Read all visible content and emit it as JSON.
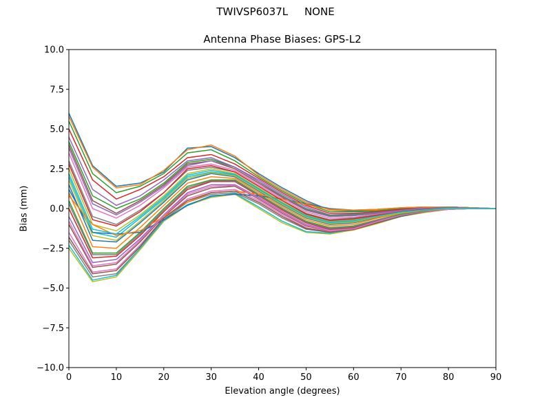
{
  "suptitle": "TWIVSP6037L     NONE",
  "chart_data": {
    "type": "line",
    "title": "Antenna Phase Biases: GPS-L2",
    "xlabel": "Elevation angle (degrees)",
    "ylabel": "Bias (mm)",
    "xlim": [
      0,
      90
    ],
    "ylim": [
      -10,
      10
    ],
    "xticks": [
      0,
      10,
      20,
      30,
      40,
      50,
      60,
      70,
      80,
      90
    ],
    "xtick_labels": [
      "0",
      "10",
      "20",
      "30",
      "40",
      "50",
      "60",
      "70",
      "80",
      "90"
    ],
    "yticks": [
      -10,
      -7.5,
      -5,
      -2.5,
      0,
      2.5,
      5,
      7.5,
      10
    ],
    "ytick_labels": [
      "−10.0",
      "−7.5",
      "−5.0",
      "−2.5",
      "0.0",
      "2.5",
      "5.0",
      "7.5",
      "10.0"
    ],
    "grid": false,
    "legend": "none",
    "colors": [
      "#1f77b4",
      "#ff7f0e",
      "#2ca02c",
      "#d62728",
      "#9467bd",
      "#8c564b",
      "#e377c2",
      "#7f7f7f",
      "#bcbd22",
      "#17becf"
    ],
    "x": [
      0,
      5,
      10,
      15,
      20,
      25,
      30,
      35,
      40,
      45,
      50,
      55,
      60,
      65,
      70,
      75,
      80,
      85,
      90
    ],
    "series": [
      {
        "values": [
          6.0,
          2.7,
          1.4,
          1.6,
          2.3,
          3.8,
          3.9,
          3.2,
          2.2,
          1.3,
          0.5,
          -0.1,
          -0.15,
          -0.1,
          0.0,
          0.1,
          0.1,
          0.05,
          0.0
        ]
      },
      {
        "values": [
          5.8,
          2.6,
          1.3,
          1.5,
          2.4,
          3.7,
          4.0,
          3.3,
          2.1,
          1.2,
          0.4,
          -0.1,
          -0.1,
          -0.1,
          0.05,
          0.1,
          0.1,
          0.05,
          0.0
        ]
      },
      {
        "values": [
          5.5,
          2.2,
          1.0,
          1.4,
          2.2,
          3.5,
          3.7,
          3.0,
          2.0,
          1.1,
          0.3,
          -0.2,
          -0.2,
          -0.15,
          0.0,
          0.1,
          0.1,
          0.05,
          0.0
        ]
      },
      {
        "values": [
          5.0,
          1.8,
          0.6,
          1.2,
          2.0,
          3.2,
          3.4,
          2.8,
          1.9,
          1.0,
          0.2,
          -0.3,
          -0.3,
          -0.2,
          -0.05,
          0.05,
          0.1,
          0.05,
          0.0
        ]
      },
      {
        "values": [
          4.5,
          1.2,
          0.2,
          0.8,
          1.8,
          3.0,
          3.2,
          2.6,
          1.8,
          0.9,
          0.1,
          -0.4,
          -0.35,
          -0.25,
          -0.1,
          0.05,
          0.1,
          0.05,
          0.0
        ]
      },
      {
        "values": [
          4.0,
          0.5,
          -0.3,
          0.5,
          1.5,
          2.8,
          3.0,
          2.5,
          1.6,
          0.7,
          -0.1,
          -0.5,
          -0.45,
          -0.3,
          -0.15,
          0.0,
          0.05,
          0.03,
          0.0
        ]
      },
      {
        "values": [
          3.5,
          0.0,
          -0.6,
          0.2,
          1.3,
          2.6,
          2.8,
          2.4,
          1.5,
          0.6,
          -0.2,
          -0.6,
          -0.55,
          -0.35,
          -0.15,
          0.0,
          0.05,
          0.03,
          0.0
        ]
      },
      {
        "values": [
          3.0,
          -0.5,
          -1.0,
          -0.1,
          1.0,
          2.4,
          2.6,
          2.3,
          1.4,
          0.5,
          -0.3,
          -0.7,
          -0.6,
          -0.4,
          -0.2,
          -0.05,
          0.05,
          0.03,
          0.0
        ]
      },
      {
        "values": [
          2.5,
          -1.0,
          -1.4,
          -0.4,
          0.8,
          2.2,
          2.5,
          2.2,
          1.3,
          0.4,
          -0.4,
          -0.8,
          -0.7,
          -0.45,
          -0.2,
          -0.05,
          0.05,
          0.03,
          0.0
        ]
      },
      {
        "values": [
          2.0,
          -1.5,
          -1.8,
          -0.6,
          0.6,
          2.0,
          2.3,
          2.1,
          1.2,
          0.3,
          -0.5,
          -0.9,
          -0.8,
          -0.5,
          -0.25,
          -0.1,
          0.0,
          0.02,
          0.0
        ]
      },
      {
        "values": [
          1.5,
          -2.0,
          -2.1,
          -0.9,
          0.4,
          1.8,
          2.2,
          2.0,
          1.1,
          0.2,
          -0.6,
          -1.0,
          -0.9,
          -0.55,
          -0.3,
          -0.1,
          0.0,
          0.02,
          0.0
        ]
      },
      {
        "values": [
          1.0,
          -2.4,
          -2.5,
          -1.2,
          0.2,
          1.6,
          2.0,
          1.9,
          1.0,
          0.1,
          -0.7,
          -1.1,
          -1.0,
          -0.6,
          -0.3,
          -0.1,
          0.0,
          0.02,
          0.0
        ]
      },
      {
        "values": [
          0.5,
          -2.8,
          -2.8,
          -1.5,
          0.0,
          1.4,
          1.8,
          1.8,
          0.9,
          0.0,
          -0.8,
          -1.2,
          -1.1,
          -0.7,
          -0.35,
          -0.15,
          0.0,
          0.02,
          0.0
        ]
      },
      {
        "values": [
          0.0,
          -3.1,
          -3.0,
          -1.7,
          -0.2,
          1.2,
          1.7,
          1.7,
          0.8,
          -0.1,
          -0.9,
          -1.3,
          -1.2,
          -0.75,
          -0.4,
          -0.15,
          0.0,
          0.02,
          0.0
        ]
      },
      {
        "values": [
          -0.5,
          -3.4,
          -3.2,
          -1.9,
          -0.4,
          1.0,
          1.5,
          1.5,
          0.7,
          -0.2,
          -1.0,
          -1.35,
          -1.25,
          -0.8,
          -0.4,
          -0.15,
          -0.05,
          0.0,
          0.0
        ]
      },
      {
        "values": [
          -1.0,
          -3.7,
          -3.5,
          -2.1,
          -0.5,
          0.8,
          1.3,
          1.4,
          0.6,
          -0.3,
          -1.1,
          -1.4,
          -1.3,
          -0.85,
          -0.45,
          -0.2,
          -0.05,
          0.0,
          0.0
        ]
      },
      {
        "values": [
          -1.5,
          -4.0,
          -3.8,
          -2.3,
          -0.6,
          0.6,
          1.1,
          1.2,
          0.5,
          -0.4,
          -1.2,
          -1.45,
          -1.3,
          -0.9,
          -0.45,
          -0.2,
          -0.05,
          0.0,
          0.0
        ]
      },
      {
        "values": [
          -2.0,
          -4.3,
          -4.1,
          -2.5,
          -0.7,
          0.4,
          0.9,
          1.0,
          0.3,
          -0.6,
          -1.3,
          -1.5,
          -1.35,
          -0.9,
          -0.5,
          -0.2,
          -0.05,
          0.0,
          0.0
        ]
      },
      {
        "values": [
          -2.5,
          -4.6,
          -4.3,
          -2.6,
          -0.8,
          0.2,
          0.7,
          0.9,
          0.0,
          -0.9,
          -1.5,
          -1.6,
          -1.35,
          -0.95,
          -0.5,
          -0.25,
          -0.05,
          0.0,
          0.0
        ]
      },
      {
        "values": [
          -2.3,
          -4.5,
          -4.2,
          -2.5,
          -0.75,
          0.25,
          0.75,
          0.95,
          0.1,
          -0.8,
          -1.45,
          -1.55,
          -1.3,
          -0.9,
          -0.5,
          -0.2,
          -0.05,
          0.0,
          0.0
        ]
      },
      {
        "values": [
          1.2,
          -1.5,
          -1.6,
          -1.5,
          -0.7,
          0.2,
          0.8,
          0.9,
          0.8,
          0.6,
          0.3,
          0.0,
          -0.1,
          -0.05,
          0.05,
          0.1,
          0.1,
          0.05,
          0.0
        ]
      },
      {
        "values": [
          0.8,
          -1.0,
          -1.7,
          -1.4,
          -0.5,
          0.4,
          1.0,
          1.1,
          0.9,
          0.6,
          0.25,
          -0.05,
          -0.1,
          -0.05,
          0.05,
          0.1,
          0.1,
          0.05,
          0.0
        ]
      },
      {
        "values": [
          4.2,
          0.8,
          0.0,
          0.6,
          1.6,
          2.9,
          3.1,
          2.6,
          1.7,
          0.8,
          0.0,
          -0.45,
          -0.4,
          -0.28,
          -0.12,
          0.02,
          0.08,
          0.04,
          0.0
        ]
      },
      {
        "values": [
          2.8,
          -0.7,
          -1.1,
          -0.2,
          1.0,
          2.5,
          2.7,
          2.3,
          1.4,
          0.5,
          -0.35,
          -0.75,
          -0.65,
          -0.42,
          -0.2,
          -0.05,
          0.05,
          0.03,
          0.0
        ]
      },
      {
        "values": [
          3.8,
          0.3,
          -0.4,
          0.4,
          1.4,
          2.7,
          3.0,
          2.6,
          1.7,
          0.75,
          -0.05,
          -0.5,
          -0.45,
          -0.3,
          -0.12,
          0.02,
          0.06,
          0.03,
          0.0
        ]
      },
      {
        "values": [
          -1.8,
          -4.1,
          -3.9,
          -2.4,
          -0.6,
          0.5,
          1.0,
          1.1,
          0.4,
          -0.5,
          -1.25,
          -1.48,
          -1.32,
          -0.9,
          -0.48,
          -0.2,
          -0.05,
          0.0,
          0.0
        ]
      },
      {
        "values": [
          -0.8,
          -3.6,
          -3.4,
          -2.0,
          -0.45,
          0.9,
          1.4,
          1.45,
          0.65,
          -0.25,
          -1.05,
          -1.38,
          -1.28,
          -0.82,
          -0.42,
          -0.18,
          -0.05,
          0.0,
          0.0
        ]
      },
      {
        "values": [
          0.3,
          -2.9,
          -2.9,
          -1.6,
          -0.1,
          1.3,
          1.75,
          1.75,
          0.85,
          -0.05,
          -0.85,
          -1.25,
          -1.15,
          -0.72,
          -0.38,
          -0.15,
          0.0,
          0.02,
          0.0
        ]
      },
      {
        "values": [
          1.8,
          -1.7,
          -2.0,
          -0.8,
          0.5,
          1.9,
          2.25,
          2.05,
          1.15,
          0.25,
          -0.55,
          -0.95,
          -0.85,
          -0.52,
          -0.28,
          -0.1,
          0.0,
          0.02,
          0.0
        ]
      },
      {
        "values": [
          2.2,
          -1.3,
          -1.6,
          -0.5,
          0.7,
          2.1,
          2.4,
          2.15,
          1.25,
          0.35,
          -0.45,
          -0.85,
          -0.75,
          -0.48,
          -0.22,
          -0.08,
          0.02,
          0.02,
          0.0
        ]
      }
    ]
  }
}
